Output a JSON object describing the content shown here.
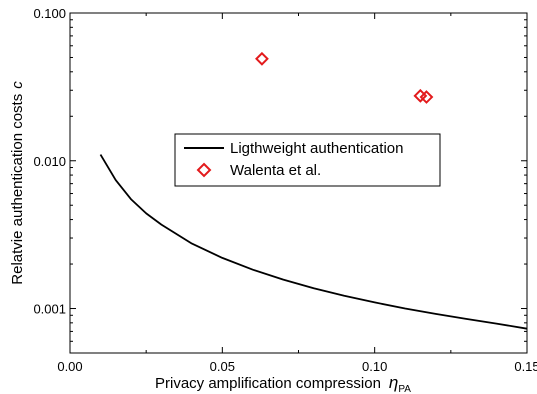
{
  "chart_data": {
    "type": "line",
    "xlabel": "Privacy amplification compression",
    "xlabel_symbol": "η",
    "xlabel_subscript": "PA",
    "ylabel": "Relatvie authentication costs",
    "ylabel_symbol": "c",
    "x_scale": "linear",
    "y_scale": "log",
    "xlim": [
      0.0,
      0.15
    ],
    "ylim": [
      0.0005,
      0.1
    ],
    "x_ticks": [
      0.0,
      0.05,
      0.1,
      0.15
    ],
    "x_tick_labels": [
      "0.00",
      "0.05",
      "0.10",
      "0.15"
    ],
    "y_ticks": [
      0.001,
      0.01,
      0.1
    ],
    "y_tick_labels": [
      "0.001",
      "0.010",
      "0.100"
    ],
    "grid": false,
    "legend_position": "center-right",
    "series": [
      {
        "name": "Ligthweight authentication",
        "type": "line",
        "color": "#000000",
        "x": [
          0.01,
          0.015,
          0.02,
          0.025,
          0.03,
          0.04,
          0.05,
          0.06,
          0.07,
          0.08,
          0.09,
          0.1,
          0.11,
          0.12,
          0.13,
          0.14,
          0.15
        ],
        "y": [
          0.011,
          0.0074,
          0.0055,
          0.0044,
          0.0037,
          0.00275,
          0.0022,
          0.00183,
          0.00157,
          0.00137,
          0.00122,
          0.0011,
          0.001,
          0.00092,
          0.00085,
          0.00079,
          0.00073
        ]
      },
      {
        "name": "Walenta et al.",
        "type": "scatter",
        "marker": "diamond-open",
        "color": "#e31a1c",
        "x": [
          0.063,
          0.115,
          0.117
        ],
        "y": [
          0.049,
          0.0275,
          0.027
        ]
      }
    ]
  }
}
